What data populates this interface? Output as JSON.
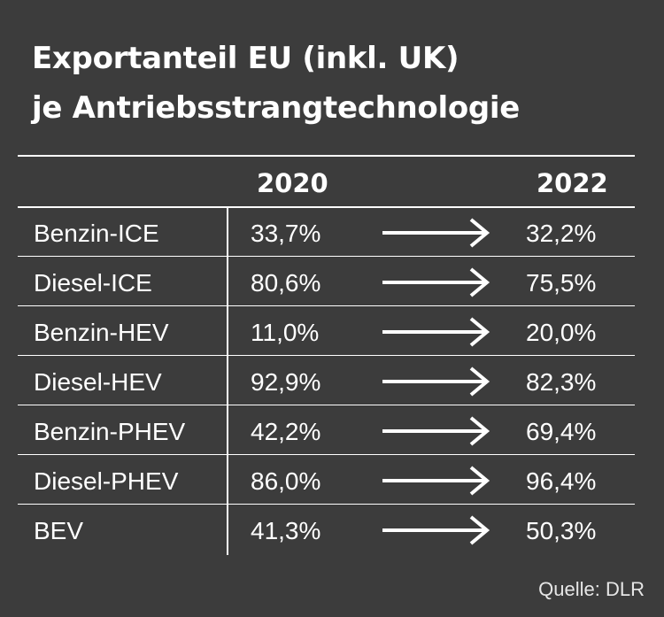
{
  "title": {
    "line1": "Exportanteil EU (inkl. UK)",
    "line2": "je Antriebsstrangtechnologie"
  },
  "chart_data": {
    "type": "table",
    "columns": [
      "2020",
      "2022"
    ],
    "rows": [
      {
        "label": "Benzin-ICE",
        "v2020": "33,7%",
        "v2022": "32,2%"
      },
      {
        "label": "Diesel-ICE",
        "v2020": "80,6%",
        "v2022": "75,5%"
      },
      {
        "label": "Benzin-HEV",
        "v2020": "11,0%",
        "v2022": "20,0%"
      },
      {
        "label": "Diesel-HEV",
        "v2020": "92,9%",
        "v2022": "82,3%"
      },
      {
        "label": "Benzin-PHEV",
        "v2020": "42,2%",
        "v2022": "69,4%"
      },
      {
        "label": "Diesel-PHEV",
        "v2020": "86,0%",
        "v2022": "96,4%"
      },
      {
        "label": "BEV",
        "v2020": "41,3%",
        "v2022": "50,3%"
      }
    ],
    "values_2020": [
      33.7,
      80.6,
      11.0,
      92.9,
      42.2,
      86.0,
      41.3
    ],
    "values_2022": [
      32.2,
      75.5,
      20.0,
      82.3,
      69.4,
      96.4,
      50.3
    ]
  },
  "colors": {
    "background": "#3c3c3c",
    "foreground": "#ffffff"
  },
  "icons": {
    "row_arrow": "right-arrow-icon"
  },
  "source": "Quelle: DLR"
}
